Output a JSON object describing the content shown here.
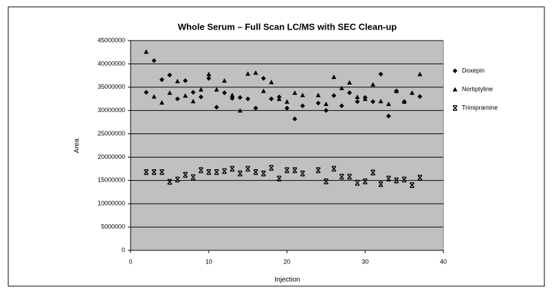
{
  "chart_data": {
    "type": "scatter",
    "title": "Whole Serum – Full Scan LC/MS with SEC Clean-up",
    "x_label": "Injection",
    "y_label": "Area",
    "xlim": [
      0,
      40
    ],
    "xticks": [
      0,
      10,
      20,
      30,
      40
    ],
    "ylim": [
      0,
      45000000
    ],
    "yticks": [
      0,
      5000000,
      10000000,
      15000000,
      20000000,
      25000000,
      30000000,
      35000000,
      40000000,
      45000000
    ],
    "grid": true,
    "legend": "right",
    "series": [
      {
        "name": "Doxepin",
        "color": "#000000",
        "marker": "diamond",
        "x": [
          2,
          3,
          4,
          5,
          6,
          7,
          8,
          9,
          10,
          11,
          12,
          13,
          14,
          15,
          16,
          17,
          18,
          19,
          20,
          21,
          22,
          24,
          25,
          26,
          27,
          28,
          29,
          30,
          31,
          32,
          33,
          34,
          35,
          37
        ],
        "values": [
          33900000,
          40700000,
          36600000,
          37600000,
          32500000,
          36400000,
          33900000,
          32900000,
          36900000,
          30700000,
          33800000,
          32600000,
          32800000,
          32500000,
          30500000,
          36900000,
          32500000,
          32900000,
          30500000,
          28200000,
          31000000,
          31600000,
          30000000,
          33200000,
          31000000,
          33800000,
          31900000,
          32800000,
          31900000,
          37800000,
          28800000,
          34200000,
          31900000,
          33000000
        ]
      },
      {
        "name": "Nortiptyline",
        "color": "#000000",
        "marker": "triangle",
        "x": [
          2,
          3,
          4,
          5,
          6,
          7,
          8,
          9,
          10,
          11,
          12,
          13,
          14,
          15,
          16,
          17,
          18,
          19,
          20,
          21,
          22,
          24,
          25,
          26,
          27,
          28,
          29,
          30,
          31,
          32,
          33,
          34,
          35,
          36,
          37
        ],
        "values": [
          42600000,
          33000000,
          31700000,
          33800000,
          36300000,
          33200000,
          32000000,
          34500000,
          37800000,
          34500000,
          36400000,
          33300000,
          30000000,
          37900000,
          38100000,
          34200000,
          36100000,
          32500000,
          31900000,
          33800000,
          33300000,
          33300000,
          31400000,
          37200000,
          34800000,
          36000000,
          32900000,
          32500000,
          35600000,
          32000000,
          31400000,
          34200000,
          31900000,
          33800000,
          37800000
        ]
      },
      {
        "name": "Trimipramine",
        "color": "#000000",
        "marker": "x",
        "x": [
          2,
          3,
          4,
          5,
          6,
          7,
          8,
          9,
          10,
          11,
          12,
          13,
          14,
          15,
          16,
          17,
          18,
          19,
          20,
          21,
          22,
          24,
          25,
          26,
          27,
          28,
          29,
          30,
          31,
          32,
          33,
          34,
          35,
          36,
          37
        ],
        "values": [
          16800000,
          16800000,
          16800000,
          14700000,
          15200000,
          16200000,
          15700000,
          17200000,
          16800000,
          16800000,
          17000000,
          17500000,
          16500000,
          17500000,
          16800000,
          16500000,
          17700000,
          15400000,
          17200000,
          17200000,
          16500000,
          17200000,
          14800000,
          17500000,
          15800000,
          15800000,
          14500000,
          14800000,
          16700000,
          14200000,
          15400000,
          15000000,
          15200000,
          14000000,
          15600000
        ]
      }
    ]
  }
}
